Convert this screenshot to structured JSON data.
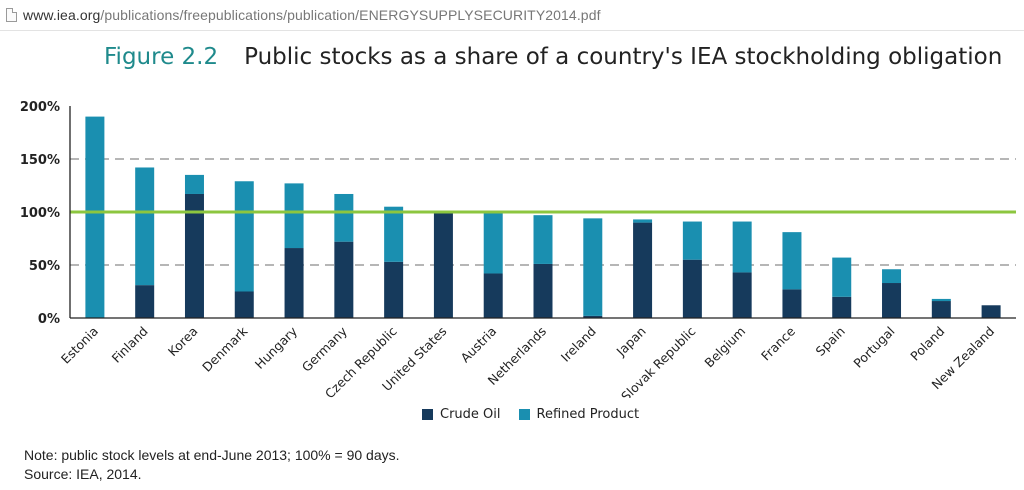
{
  "browser": {
    "url_host": "www.iea.org",
    "url_path": "/publications/freepublications/publication/ENERGYSUPPLYSECURITY2014.pdf",
    "page_icon": "document-icon"
  },
  "figure": {
    "number": "Figure 2.2",
    "title": "Public stocks as a share of a country's IEA stockholding obligation"
  },
  "legend": {
    "crude_label": "Crude Oil",
    "refined_label": "Refined Product"
  },
  "note": {
    "line1": "Note: public stock levels at end-June 2013; 100% = 90 days.",
    "line2": "Source: IEA, 2014."
  },
  "colors": {
    "crude": "#163a5c",
    "refined": "#1a8fb0",
    "reference_line": "#8cc63f",
    "grid": "#8a8a8a",
    "title_accent": "#1f8a8c"
  },
  "chart_data": {
    "type": "bar",
    "stacked": true,
    "title": "Public stocks as a share of a country's IEA stockholding obligation",
    "xlabel": "",
    "ylabel": "",
    "ylim": [
      0,
      200
    ],
    "yticks": [
      0,
      50,
      100,
      150,
      200
    ],
    "ytick_labels": [
      "0%",
      "50%",
      "100%",
      "150%",
      "200%"
    ],
    "grid": "dashed horizontal at 50% and 150%",
    "reference_line": 100,
    "legend_position": "bottom",
    "categories": [
      "Estonia",
      "Finland",
      "Korea",
      "Denmark",
      "Hungary",
      "Germany",
      "Czech Republic",
      "United States",
      "Austria",
      "Netherlands",
      "Ireland",
      "Japan",
      "Slovak Republic",
      "Belgium",
      "France",
      "Spain",
      "Portugal",
      "Poland",
      "New Zealand"
    ],
    "series": [
      {
        "name": "Crude Oil",
        "values": [
          0,
          31,
          117,
          25,
          66,
          72,
          53,
          100,
          42,
          51,
          2,
          90,
          55,
          43,
          27,
          20,
          33,
          16,
          12
        ]
      },
      {
        "name": "Refined Product",
        "values": [
          190,
          111,
          18,
          104,
          61,
          45,
          52,
          0,
          58,
          46,
          92,
          3,
          36,
          48,
          54,
          37,
          13,
          2,
          0
        ]
      }
    ]
  }
}
